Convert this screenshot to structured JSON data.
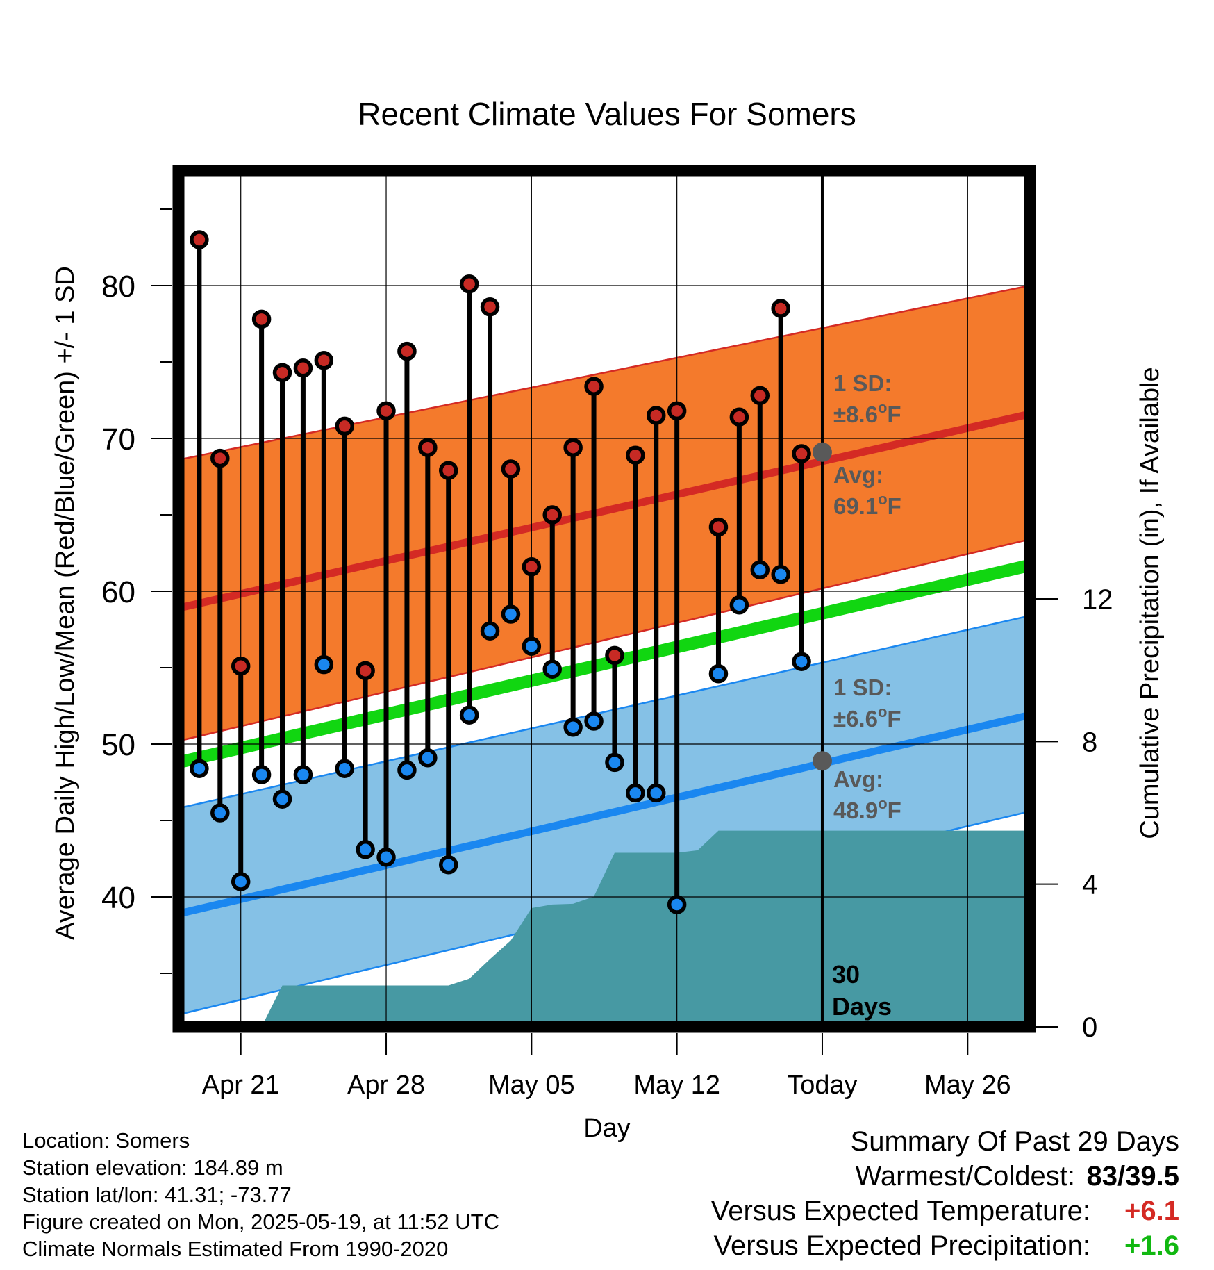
{
  "chart_data": {
    "type": "line",
    "title": "Recent Climate Values For Somers",
    "xlabel": "Day",
    "ylabel": "Average Daily High/Low/Mean (Red/Blue/Green) +/- 1 SD",
    "y2label": "Cumulative Precipitation (in), If Available",
    "xlim": [
      "2025-04-18",
      "2025-05-29"
    ],
    "ylim": [
      31.5,
      87.5
    ],
    "y2lim": [
      0,
      24
    ],
    "y_ticks": [
      40,
      50,
      60,
      70,
      80
    ],
    "y2_ticks": [
      0,
      4,
      8,
      12
    ],
    "x_tick_labels": [
      {
        "date": "2025-04-21",
        "label": "Apr 21"
      },
      {
        "date": "2025-04-28",
        "label": "Apr 28"
      },
      {
        "date": "2025-05-05",
        "label": "May 05"
      },
      {
        "date": "2025-05-12",
        "label": "May 12"
      },
      {
        "date": "2025-05-19",
        "label": "Today"
      },
      {
        "date": "2025-05-26",
        "label": "May 26"
      }
    ],
    "grid": true,
    "normals": {
      "high_mean": {
        "start": 58.9,
        "end": 71.6,
        "color": "#d42a24"
      },
      "high_sd_band": {
        "lower_start": 50.2,
        "lower_end": 63.4,
        "upper_start": 68.6,
        "upper_end": 80.0,
        "color": "#f47a2c"
      },
      "mean": {
        "start": 48.8,
        "end": 61.7,
        "color": "#11d611"
      },
      "low_mean": {
        "start": 38.9,
        "end": 51.9,
        "color": "#1a87f0"
      },
      "low_sd_band": {
        "lower_start": 32.3,
        "lower_end": 45.6,
        "upper_start": 45.8,
        "upper_end": 58.4,
        "color": "#85c1e6"
      }
    },
    "series": [
      {
        "name": "High",
        "color": "#c72a24",
        "x": [
          "2025-04-19",
          "2025-04-20",
          "2025-04-21",
          "2025-04-22",
          "2025-04-23",
          "2025-04-24",
          "2025-04-25",
          "2025-04-26",
          "2025-04-27",
          "2025-04-28",
          "2025-04-29",
          "2025-04-30",
          "2025-05-01",
          "2025-05-02",
          "2025-05-03",
          "2025-05-04",
          "2025-05-05",
          "2025-05-06",
          "2025-05-07",
          "2025-05-08",
          "2025-05-09",
          "2025-05-10",
          "2025-05-11",
          "2025-05-12",
          "2025-05-14",
          "2025-05-15",
          "2025-05-16",
          "2025-05-17",
          "2025-05-18"
        ],
        "values": [
          83.0,
          68.7,
          55.1,
          77.8,
          74.3,
          74.6,
          75.1,
          70.8,
          54.8,
          71.8,
          75.7,
          69.4,
          67.9,
          80.1,
          78.6,
          68.0,
          61.6,
          65.0,
          69.4,
          73.4,
          55.8,
          68.9,
          71.5,
          71.8,
          64.2,
          71.4,
          72.8,
          78.5,
          69.0
        ]
      },
      {
        "name": "Low",
        "color": "#1a87f0",
        "x": [
          "2025-04-19",
          "2025-04-20",
          "2025-04-21",
          "2025-04-22",
          "2025-04-23",
          "2025-04-24",
          "2025-04-25",
          "2025-04-26",
          "2025-04-27",
          "2025-04-28",
          "2025-04-29",
          "2025-04-30",
          "2025-05-01",
          "2025-05-02",
          "2025-05-03",
          "2025-05-04",
          "2025-05-05",
          "2025-05-06",
          "2025-05-07",
          "2025-05-08",
          "2025-05-09",
          "2025-05-10",
          "2025-05-11",
          "2025-05-12",
          "2025-05-14",
          "2025-05-15",
          "2025-05-16",
          "2025-05-17",
          "2025-05-18"
        ],
        "values": [
          48.4,
          45.5,
          41.0,
          48.0,
          46.4,
          48.0,
          55.2,
          48.4,
          43.1,
          42.6,
          48.3,
          49.1,
          42.1,
          51.9,
          57.4,
          58.5,
          56.4,
          54.9,
          51.1,
          51.5,
          48.8,
          46.8,
          46.8,
          39.5,
          54.6,
          59.1,
          61.4,
          61.1,
          55.4
        ]
      },
      {
        "name": "Cumulative Precipitation",
        "type": "area",
        "axis": "y2",
        "color": "#4799a3",
        "x": [
          "2025-04-22",
          "2025-04-23",
          "2025-05-01",
          "2025-05-02",
          "2025-05-03",
          "2025-05-04",
          "2025-05-05",
          "2025-05-06",
          "2025-05-07",
          "2025-05-08",
          "2025-05-09",
          "2025-05-12",
          "2025-05-13",
          "2025-05-14",
          "2025-05-29"
        ],
        "values": [
          0.0,
          1.16,
          1.16,
          1.35,
          1.9,
          2.42,
          3.33,
          3.43,
          3.45,
          3.65,
          4.88,
          4.88,
          4.95,
          5.5,
          5.5
        ]
      }
    ],
    "annotations": {
      "today_date": "2025-05-19",
      "high_sd_label": "1 SD:",
      "high_sd_value": "±8.6°F",
      "high_avg_label": "Avg:",
      "high_avg_value": "69.1°F",
      "high_avg_numeric": 69.1,
      "low_sd_label": "1 SD:",
      "low_sd_value": "±6.6°F",
      "low_avg_label": "Avg:",
      "low_avg_value": "48.9°F",
      "low_avg_numeric": 48.9,
      "days_number": "30",
      "days_word": "Days",
      "annotation_color": "#595959"
    }
  },
  "info": {
    "location": "Location: Somers",
    "elevation": "Station elevation: 184.89 m",
    "latlon": "Station lat/lon: 41.31; -73.77",
    "created": "Figure created on Mon, 2025-05-19, at 11:52 UTC",
    "normals": "Climate Normals Estimated From 1990-2020"
  },
  "summary": {
    "heading": "Summary Of Past 29 Days",
    "warmest_label": "Warmest/Coldest:",
    "warmest_value": "83/39.5",
    "temp_label": "Versus Expected Temperature:",
    "temp_value": "+6.1",
    "temp_color": "#d42a24",
    "precip_label": "Versus Expected Precipitation:",
    "precip_value": "+1.6",
    "precip_color": "#11b811"
  }
}
